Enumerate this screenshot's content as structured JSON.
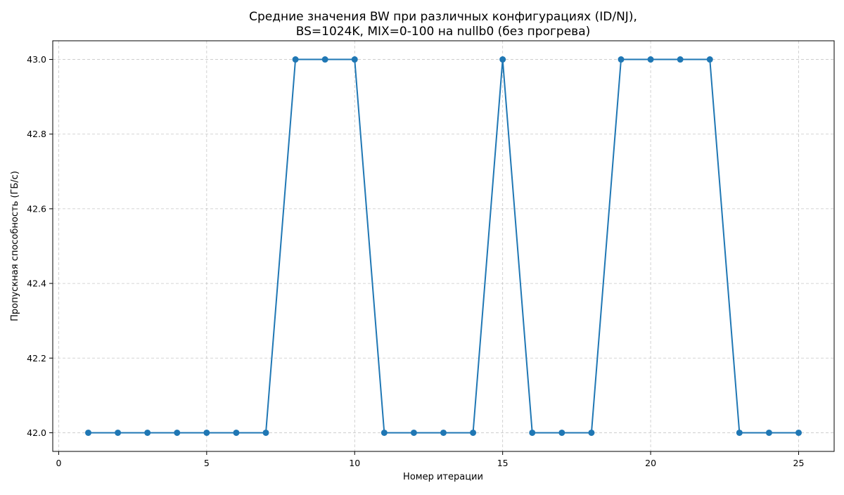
{
  "chart_data": {
    "type": "line",
    "title_lines": [
      "Средние значения BW при различных конфигурациях (ID/NJ),",
      "BS=1024K, MIX=0-100 на nullb0 (без прогрева)"
    ],
    "xlabel": "Номер итерации",
    "ylabel": "Пропускная способность (ГБ/с)",
    "x": [
      1,
      2,
      3,
      4,
      5,
      6,
      7,
      8,
      9,
      10,
      11,
      12,
      13,
      14,
      15,
      16,
      17,
      18,
      19,
      20,
      21,
      22,
      23,
      24,
      25
    ],
    "series": [
      {
        "values": [
          42.0,
          42.0,
          42.0,
          42.0,
          42.0,
          42.0,
          42.0,
          43.0,
          43.0,
          43.0,
          42.0,
          42.0,
          42.0,
          42.0,
          43.0,
          42.0,
          42.0,
          42.0,
          43.0,
          43.0,
          43.0,
          43.0,
          42.0,
          42.0,
          42.0
        ],
        "color": "#1f77b4",
        "marker": "circle"
      }
    ],
    "xlim": [
      -0.2,
      26.2
    ],
    "ylim": [
      41.95,
      43.05
    ],
    "xticks": [
      0,
      5,
      10,
      15,
      20,
      25
    ],
    "xtick_labels": [
      "0",
      "5",
      "10",
      "15",
      "20",
      "25"
    ],
    "yticks": [
      42.0,
      42.2,
      42.4,
      42.6,
      42.8,
      43.0
    ],
    "ytick_labels": [
      "42.0",
      "42.2",
      "42.4",
      "42.6",
      "42.8",
      "43.0"
    ],
    "grid": true,
    "grid_style": "dashed"
  }
}
